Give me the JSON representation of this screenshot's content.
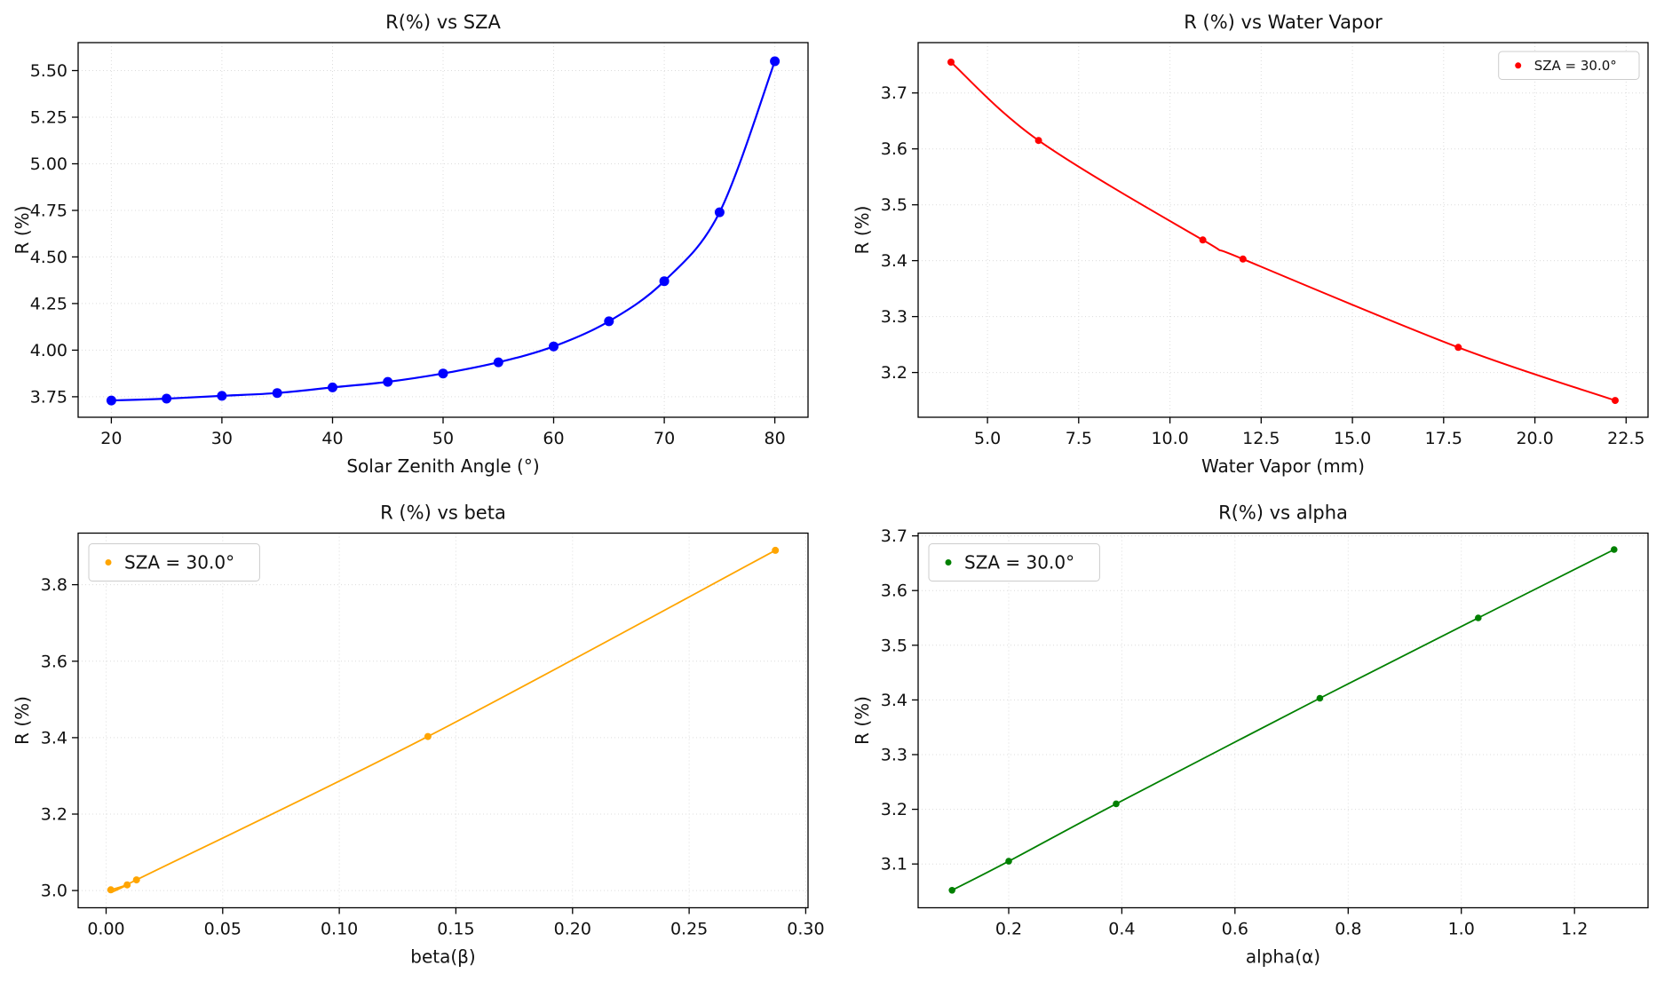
{
  "page": {
    "background": "#ffffff",
    "layout": "2x2-subplots"
  },
  "chart_data": [
    {
      "id": "sza",
      "type": "line",
      "title": "R(%) vs SZA",
      "xlabel": "Solar Zenith Angle (°)",
      "ylabel": "R (%)",
      "color": "#0000ff",
      "x": [
        20,
        25,
        30,
        35,
        40,
        45,
        50,
        55,
        60,
        65,
        70,
        75,
        80
      ],
      "y": [
        3.73,
        3.74,
        3.755,
        3.77,
        3.8,
        3.83,
        3.875,
        3.935,
        4.02,
        4.155,
        4.37,
        4.74,
        5.55
      ],
      "xlim": [
        17,
        83
      ],
      "ylim": [
        3.64,
        5.65
      ],
      "xtick_values": [
        20,
        30,
        40,
        50,
        60,
        70,
        80
      ],
      "xtick_labels": [
        "20",
        "30",
        "40",
        "50",
        "60",
        "70",
        "80"
      ],
      "ytick_values": [
        3.75,
        4.0,
        4.25,
        4.5,
        4.75,
        5.0,
        5.25,
        5.5
      ],
      "ytick_labels": [
        "3.75",
        "4.00",
        "4.25",
        "4.50",
        "4.75",
        "5.00",
        "5.25",
        "5.50"
      ],
      "grid": true,
      "marker_size": 5.5,
      "line_width": 2.2,
      "legend": null
    },
    {
      "id": "water-vapor",
      "type": "line",
      "title": "R (%) vs Water Vapor",
      "xlabel": "Water Vapor (mm)",
      "ylabel": "R (%)",
      "color": "#ff0000",
      "x": [
        4.0,
        6.4,
        10.9,
        12.0,
        17.9,
        22.2
      ],
      "y": [
        3.755,
        3.615,
        3.437,
        3.403,
        3.245,
        3.15
      ],
      "xlim": [
        3.1,
        23.1
      ],
      "ylim": [
        3.12,
        3.79
      ],
      "xtick_values": [
        5.0,
        7.5,
        10.0,
        12.5,
        15.0,
        17.5,
        20.0,
        22.5
      ],
      "xtick_labels": [
        "5.0",
        "7.5",
        "10.0",
        "12.5",
        "15.0",
        "17.5",
        "20.0",
        "22.5"
      ],
      "ytick_values": [
        3.2,
        3.3,
        3.4,
        3.5,
        3.6,
        3.7
      ],
      "ytick_labels": [
        "3.2",
        "3.3",
        "3.4",
        "3.5",
        "3.6",
        "3.7"
      ],
      "grid": true,
      "marker_size": 4,
      "line_width": 2,
      "legend": {
        "label": "SZA = 30.0°",
        "position": "upper-right",
        "fontsize": 15
      }
    },
    {
      "id": "beta",
      "type": "line",
      "title": "R (%) vs beta",
      "xlabel": "beta(β)",
      "ylabel": "R (%)",
      "color": "#ffa500",
      "x": [
        0.002,
        0.009,
        0.013,
        0.138,
        0.287
      ],
      "y": [
        3.002,
        3.015,
        3.028,
        3.403,
        3.89
      ],
      "xlim": [
        -0.012,
        0.301
      ],
      "ylim": [
        2.955,
        3.935
      ],
      "xtick_values": [
        0.0,
        0.05,
        0.1,
        0.15,
        0.2,
        0.25,
        0.3
      ],
      "xtick_labels": [
        "0.00",
        "0.05",
        "0.10",
        "0.15",
        "0.20",
        "0.25",
        "0.30"
      ],
      "ytick_values": [
        3.0,
        3.2,
        3.4,
        3.6,
        3.8
      ],
      "ytick_labels": [
        "3.0",
        "3.2",
        "3.4",
        "3.6",
        "3.8"
      ],
      "grid": true,
      "marker_size": 4,
      "line_width": 1.8,
      "legend": {
        "label": "SZA = 30.0°",
        "position": "upper-left",
        "fontsize": 20
      }
    },
    {
      "id": "alpha",
      "type": "line",
      "title": "R(%) vs alpha",
      "xlabel": "alpha(α)",
      "ylabel": "R (%)",
      "color": "#008000",
      "x": [
        0.1,
        0.2,
        0.39,
        0.75,
        1.03,
        1.27
      ],
      "y": [
        3.052,
        3.105,
        3.21,
        3.403,
        3.55,
        3.675
      ],
      "xlim": [
        0.04,
        1.33
      ],
      "ylim": [
        3.02,
        3.705
      ],
      "xtick_values": [
        0.2,
        0.4,
        0.6,
        0.8,
        1.0,
        1.2
      ],
      "xtick_labels": [
        "0.2",
        "0.4",
        "0.6",
        "0.8",
        "1.0",
        "1.2"
      ],
      "ytick_values": [
        3.1,
        3.2,
        3.3,
        3.4,
        3.5,
        3.6,
        3.7
      ],
      "ytick_labels": [
        "3.1",
        "3.2",
        "3.3",
        "3.4",
        "3.5",
        "3.6",
        "3.7"
      ],
      "grid": true,
      "marker_size": 3.8,
      "line_width": 1.8,
      "legend": {
        "label": "SZA = 30.0°",
        "position": "upper-left",
        "fontsize": 20
      }
    }
  ]
}
